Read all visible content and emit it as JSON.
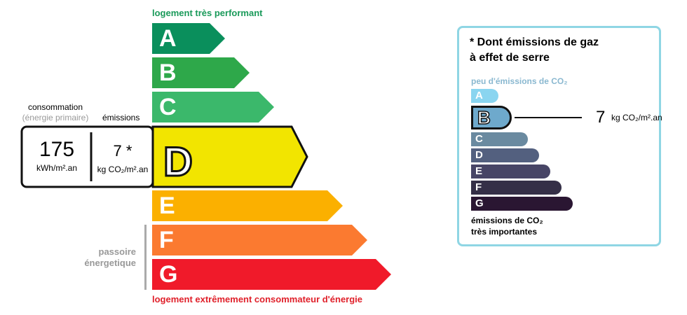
{
  "energy": {
    "top_caption": "logement très performant",
    "bottom_caption": "logement extrêmement consommateur d'énergie",
    "classes": [
      {
        "letter": "A",
        "color": "#0a8f5c"
      },
      {
        "letter": "B",
        "color": "#2ea84a"
      },
      {
        "letter": "C",
        "color": "#3bb86b"
      },
      {
        "letter": "D",
        "color": "#f2e500"
      },
      {
        "letter": "E",
        "color": "#fbb000"
      },
      {
        "letter": "F",
        "color": "#fb7a30"
      },
      {
        "letter": "G",
        "color": "#f01a2a"
      }
    ],
    "current_class": "D",
    "consumption_label": "consommation",
    "consumption_sub": "(énergie primaire)",
    "emissions_label": "émissions",
    "consumption_value": "175",
    "consumption_unit": "kWh/m².an",
    "emissions_value": "7 *",
    "emissions_unit": "kg CO₂/m².an",
    "passoire_label_1": "passoire",
    "passoire_label_2": "énergetique"
  },
  "ges": {
    "title_1": "* Dont émissions de gaz",
    "title_2": "à effet de serre",
    "top_caption": "peu d'émissions de CO₂",
    "bottom_caption_1": "émissions de CO₂",
    "bottom_caption_2": "très importantes",
    "classes": [
      {
        "letter": "A",
        "color": "#8ad5f0"
      },
      {
        "letter": "B",
        "color": "#6ea9cc"
      },
      {
        "letter": "C",
        "color": "#6a8aa0"
      },
      {
        "letter": "D",
        "color": "#53607f"
      },
      {
        "letter": "E",
        "color": "#474566"
      },
      {
        "letter": "F",
        "color": "#352f47"
      },
      {
        "letter": "G",
        "color": "#2a1632"
      }
    ],
    "current_class": "B",
    "value": "7",
    "unit": "kg CO₂/m².an",
    "border_color": "#8fd6e4"
  }
}
